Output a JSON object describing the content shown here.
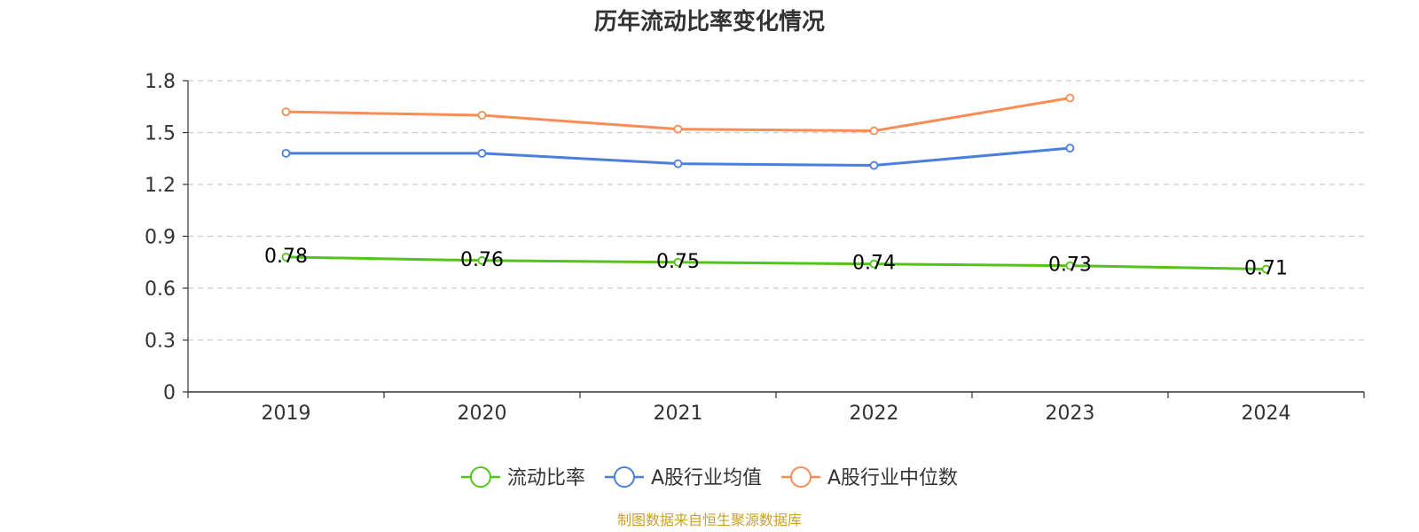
{
  "chart_data": {
    "type": "line",
    "title": "历年流动比率变化情况",
    "xlabel": "",
    "ylabel": "",
    "categories": [
      "2019",
      "2020",
      "2021",
      "2022",
      "2023",
      "2024"
    ],
    "ylim": [
      0,
      1.8
    ],
    "yticks": [
      0,
      0.3,
      0.6,
      0.9,
      1.2,
      1.5,
      1.8
    ],
    "ytick_labels": [
      "0",
      "0.3",
      "0.6",
      "0.9",
      "1.2",
      "1.5",
      "1.8"
    ],
    "grid": true,
    "legend_position": "bottom",
    "series": [
      {
        "name": "流动比率",
        "color": "#52c41a",
        "values": [
          0.78,
          0.76,
          0.75,
          0.74,
          0.73,
          0.71
        ],
        "data_labels": [
          "0.78",
          "0.76",
          "0.75",
          "0.74",
          "0.73",
          "0.71"
        ]
      },
      {
        "name": "A股行业均值",
        "color": "#4a7fde",
        "values": [
          1.38,
          1.38,
          1.32,
          1.31,
          1.41,
          null
        ]
      },
      {
        "name": "A股行业中位数",
        "color": "#fa8c55",
        "values": [
          1.62,
          1.6,
          1.52,
          1.51,
          1.7,
          null
        ]
      }
    ],
    "source": "制图数据来自恒生聚源数据库"
  }
}
